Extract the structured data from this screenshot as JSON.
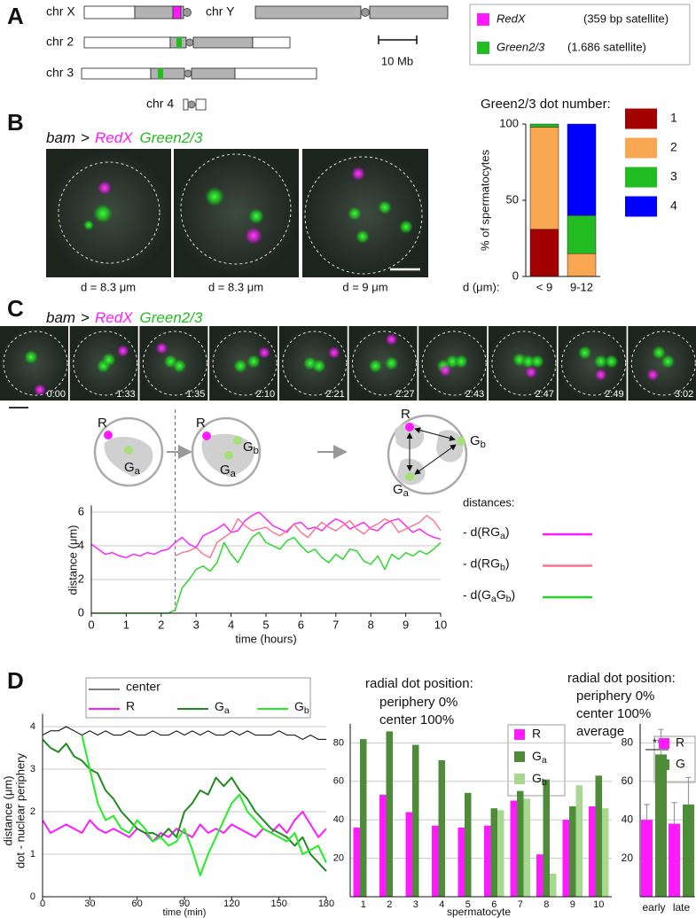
{
  "panel_labels": [
    "A",
    "B",
    "C",
    "D"
  ],
  "panel_a": {
    "chromosomes": [
      "chr X",
      "chr Y",
      "chr 2",
      "chr 3",
      "chr 4"
    ],
    "scale_bar": "10 Mb",
    "legend": [
      {
        "name": "RedX",
        "note": "(359 bp satellite)"
      },
      {
        "name": "Green2/3",
        "note": "(1.686 satellite)"
      }
    ]
  },
  "panel_b": {
    "genotype": {
      "driver": "bam",
      "arrow": ">",
      "red": "RedX",
      "green": "Green2/3"
    },
    "diameters": [
      "d = 8.3 μm",
      "d = 8.3 μm",
      "d = 9 μm"
    ]
  },
  "panel_c": {
    "genotype": {
      "driver": "bam",
      "arrow": ">",
      "red": "RedX",
      "green": "Green2/3"
    },
    "times": [
      "0:00",
      "1:33",
      "1:35",
      "2:10",
      "2:21",
      "2:27",
      "2:43",
      "2:47",
      "2:49",
      "3:02"
    ],
    "diagram": [
      "R",
      "Ga",
      "R",
      "Ga",
      "Gb",
      "R",
      "Ga",
      "Gb"
    ]
  },
  "chart_data": [
    {
      "type": "bar",
      "stacked": true,
      "title": "Green2/3 dot number:",
      "ylabel": "% of spermatocytes",
      "xlabel": "d (μm):",
      "categories": [
        "< 9",
        "9-12"
      ],
      "series": [
        {
          "name": "1",
          "color": "#a30000",
          "values": [
            31,
            0
          ]
        },
        {
          "name": "2",
          "color": "#f9a653",
          "values": [
            67,
            15
          ]
        },
        {
          "name": "3",
          "color": "#22bb22",
          "values": [
            2,
            25
          ]
        },
        {
          "name": "4",
          "color": "#0000ff",
          "values": [
            0,
            60
          ]
        }
      ],
      "ylim": [
        0,
        100
      ],
      "yticks": [
        0,
        50,
        100
      ]
    },
    {
      "type": "line",
      "xlabel": "time (hours)",
      "ylabel": "distance (μm)",
      "legend_title": "distances:",
      "x": [
        0,
        0.2,
        0.4,
        0.6,
        0.8,
        1,
        1.2,
        1.4,
        1.6,
        1.8,
        2,
        2.2,
        2.4,
        2.6,
        2.8,
        3,
        3.2,
        3.4,
        3.6,
        3.8,
        4,
        4.2,
        4.4,
        4.6,
        4.8,
        5,
        5.2,
        5.4,
        5.6,
        5.8,
        6,
        6.2,
        6.4,
        6.6,
        6.8,
        7,
        7.2,
        7.4,
        7.6,
        7.8,
        8,
        8.2,
        8.4,
        8.6,
        8.8,
        9,
        9.2,
        9.4,
        9.6,
        9.8,
        10
      ],
      "series": [
        {
          "name": "- d(RGa)",
          "color": "#ff1aff",
          "values": [
            4.1,
            3.8,
            3.5,
            3.6,
            3.4,
            3.3,
            3.5,
            3.4,
            3.6,
            3.5,
            3.7,
            3.8,
            4.2,
            4.5,
            4.1,
            3.9,
            4.6,
            4.8,
            5.0,
            5.3,
            4.8,
            4.9,
            5.5,
            5.8,
            6.0,
            5.6,
            5.2,
            5.0,
            4.8,
            5.3,
            5.4,
            5.0,
            5.1,
            4.9,
            5.3,
            5.6,
            5.4,
            5.0,
            5.2,
            5.4,
            5.0,
            4.9,
            5.3,
            5.5,
            5.6,
            5.2,
            4.8,
            5.0,
            4.7,
            4.5,
            4.4
          ]
        },
        {
          "name": "- d(RGb)",
          "color": "#ff6f8f",
          "values": [
            null,
            null,
            null,
            null,
            null,
            null,
            null,
            null,
            null,
            null,
            null,
            null,
            3.4,
            3.6,
            3.7,
            3.9,
            3.5,
            3.3,
            4.2,
            4.5,
            4.8,
            5.6,
            5.2,
            4.9,
            5.0,
            5.1,
            4.8,
            4.6,
            4.9,
            5.3,
            4.8,
            4.5,
            5.0,
            5.4,
            5.1,
            4.9,
            5.2,
            5.5,
            5.0,
            4.7,
            5.1,
            5.3,
            5.6,
            5.4,
            4.8,
            5.0,
            5.2,
            5.4,
            5.8,
            5.5,
            4.9
          ]
        },
        {
          "name": "- d(GaGb)",
          "color": "#22d822",
          "values": [
            0,
            0,
            0,
            0,
            0,
            0,
            0,
            0,
            0,
            0,
            0,
            0,
            0.2,
            1.5,
            2.0,
            2.6,
            2.8,
            2.5,
            3.0,
            4.2,
            3.5,
            3.0,
            3.8,
            4.5,
            4.8,
            4.2,
            4.0,
            3.8,
            4.3,
            4.5,
            4.0,
            3.6,
            3.8,
            3.3,
            3.0,
            3.5,
            3.2,
            3.8,
            3.7,
            3.1,
            2.9,
            3.4,
            2.6,
            3.5,
            3.2,
            3.6,
            3.4,
            3.7,
            3.5,
            3.8,
            4.2
          ]
        }
      ],
      "xlim": [
        0,
        10
      ],
      "xticks": [
        0,
        1,
        2,
        3,
        4,
        5,
        6,
        7,
        8,
        9,
        10
      ],
      "ylim": [
        0,
        6.4
      ],
      "yticks": [
        0,
        2,
        4,
        6
      ],
      "grid": true
    },
    {
      "type": "line",
      "xlabel": "time (min)",
      "ylabel": [
        "distance (μm)",
        "dot - nuclear periphery"
      ],
      "x": [
        0,
        5,
        10,
        15,
        20,
        25,
        30,
        35,
        40,
        45,
        50,
        55,
        60,
        65,
        70,
        75,
        80,
        85,
        90,
        95,
        100,
        105,
        110,
        115,
        120,
        125,
        130,
        135,
        140,
        145,
        150,
        155,
        160,
        165,
        170,
        175,
        180
      ],
      "series": [
        {
          "name": "center",
          "color": "#000000",
          "width": 1,
          "values": [
            3.8,
            3.9,
            3.9,
            4.0,
            3.9,
            3.8,
            3.9,
            3.8,
            3.9,
            3.8,
            3.8,
            3.9,
            3.8,
            3.8,
            3.9,
            3.8,
            3.8,
            3.9,
            3.8,
            3.9,
            3.8,
            3.9,
            3.8,
            3.8,
            3.9,
            3.8,
            3.9,
            3.8,
            3.8,
            3.8,
            3.9,
            3.8,
            3.8,
            3.7,
            3.8,
            3.7,
            3.7
          ]
        },
        {
          "name": "R",
          "color": "#ff1aff",
          "width": 2,
          "values": [
            1.8,
            1.5,
            1.6,
            1.7,
            1.6,
            1.5,
            1.8,
            1.6,
            1.5,
            1.6,
            1.5,
            1.4,
            1.6,
            1.5,
            1.3,
            1.5,
            1.4,
            1.6,
            1.5,
            1.4,
            1.7,
            1.5,
            1.6,
            1.5,
            1.7,
            1.6,
            1.5,
            1.4,
            1.6,
            1.5,
            1.7,
            1.5,
            1.8,
            2.0,
            1.7,
            1.4,
            1.6
          ]
        },
        {
          "name": "Ga",
          "color": "#1f8a1f",
          "width": 2,
          "values": [
            3.7,
            3.5,
            3.4,
            3.6,
            3.3,
            3.2,
            3.0,
            2.9,
            2.5,
            2.3,
            2.0,
            1.8,
            1.6,
            1.5,
            1.5,
            1.4,
            1.6,
            1.4,
            2.0,
            2.2,
            2.5,
            2.4,
            2.8,
            2.6,
            2.8,
            2.5,
            2.3,
            2.0,
            1.8,
            1.6,
            1.5,
            1.4,
            1.2,
            1.4,
            1.0,
            0.8,
            0.6
          ]
        },
        {
          "name": "Gb",
          "color": "#22ee22",
          "width": 2,
          "values": [
            null,
            null,
            null,
            null,
            null,
            3.8,
            3.0,
            2.2,
            1.8,
            1.9,
            1.6,
            1.5,
            1.8,
            1.6,
            1.3,
            1.4,
            1.2,
            1.3,
            1.6,
            1.1,
            0.5,
            1.0,
            1.4,
            1.8,
            2.2,
            2.4,
            2.0,
            1.8,
            1.6,
            1.5,
            1.4,
            1.3,
            1.5,
            1.0,
            1.1,
            1.2,
            0.8
          ]
        }
      ],
      "xlim": [
        0,
        180
      ],
      "xticks": [
        0,
        30,
        60,
        90,
        120,
        150,
        180
      ],
      "ylim": [
        0,
        4.3
      ],
      "yticks": [
        0,
        1,
        2,
        3,
        4
      ],
      "grid": true
    },
    {
      "type": "bar",
      "title": "radial dot position:",
      "notes": [
        "periphery 0%",
        "center 100%"
      ],
      "xlabel": "spermatocyte",
      "categories": [
        "1",
        "2",
        "3",
        "4",
        "5",
        "6",
        "7",
        "8",
        "9",
        "10"
      ],
      "series": [
        {
          "name": "R",
          "color": "#ff1aff",
          "values": [
            36,
            53,
            44,
            37,
            36,
            37,
            50,
            22,
            40,
            47
          ]
        },
        {
          "name": "Ga",
          "color": "#4e8c3a",
          "values": [
            82,
            86,
            79,
            71,
            54,
            46,
            55,
            61,
            47,
            63
          ]
        },
        {
          "name": "Gb",
          "color": "#a6d98f",
          "values": [
            null,
            null,
            null,
            null,
            null,
            45,
            51,
            12,
            58,
            46
          ]
        }
      ],
      "ylim": [
        0,
        90
      ],
      "yticks": [
        20,
        40,
        60,
        80
      ],
      "grid": true
    },
    {
      "type": "bar",
      "title": "radial dot position:",
      "notes": [
        "periphery 0%",
        "center 100%",
        "average"
      ],
      "annotation": "**",
      "categories": [
        "early",
        "late"
      ],
      "series": [
        {
          "name": "R",
          "color": "#ff1aff",
          "values": [
            40,
            38
          ],
          "errors": [
            8,
            11
          ]
        },
        {
          "name": "G",
          "color": "#4e8c3a",
          "values": [
            74,
            48
          ],
          "errors": [
            13,
            14
          ]
        }
      ],
      "ylim": [
        0,
        90
      ],
      "yticks": [
        20,
        40,
        60,
        80
      ],
      "grid": true
    }
  ]
}
